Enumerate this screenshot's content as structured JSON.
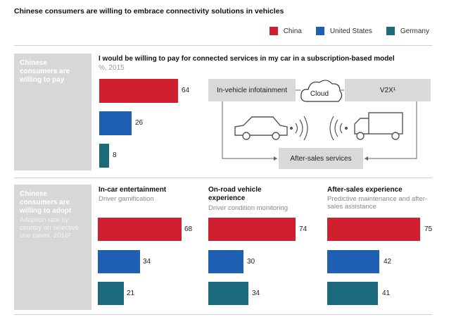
{
  "title": "Chinese consumers are willing to embrace connectivity solutions in vehicles",
  "legend": [
    {
      "label": "China",
      "color": "#d0202f"
    },
    {
      "label": "United States",
      "color": "#1f5fb4"
    },
    {
      "label": "Germany",
      "color": "#1c6b7d"
    }
  ],
  "section1": {
    "heading": "Chinese consumers are willing to pay",
    "question": "I would be willing to pay for connected services in my car in a subscription-based model",
    "unit": "%, 2015"
  },
  "section2": {
    "heading": "Chinese consumers are willing to adopt",
    "sub": "Adoption rate by country on selective use cases, 2016²"
  },
  "diagram": {
    "infotainment": "In-vehicle infotainment",
    "cloud": "Cloud",
    "v2x": "V2X¹",
    "after_sales": "After-sales services",
    "car_icon": "car-icon",
    "truck_icon": "truck-icon",
    "signal_icon": "wireless-signal-icon"
  },
  "chart_data": [
    {
      "type": "bar",
      "orientation": "horizontal",
      "title": "I would be willing to pay for connected services in my car in a subscription-based model",
      "unit": "%, 2015",
      "series": [
        {
          "name": "China",
          "values": [
            64
          ]
        },
        {
          "name": "United States",
          "values": [
            26
          ]
        },
        {
          "name": "Germany",
          "values": [
            8
          ]
        }
      ],
      "xlim": [
        0,
        100
      ]
    },
    {
      "type": "bar",
      "orientation": "horizontal",
      "title": "In-car entertainment",
      "subtitle": "Driver gamification",
      "series": [
        {
          "name": "China",
          "values": [
            68
          ]
        },
        {
          "name": "United States",
          "values": [
            34
          ]
        },
        {
          "name": "Germany",
          "values": [
            21
          ]
        }
      ],
      "xlim": [
        0,
        100
      ]
    },
    {
      "type": "bar",
      "orientation": "horizontal",
      "title": "On-road vehicle experience",
      "subtitle": "Driver condition monitoring",
      "series": [
        {
          "name": "China",
          "values": [
            74
          ]
        },
        {
          "name": "United States",
          "values": [
            30
          ]
        },
        {
          "name": "Germany",
          "values": [
            34
          ]
        }
      ],
      "xlim": [
        0,
        100
      ]
    },
    {
      "type": "bar",
      "orientation": "horizontal",
      "title": "After-sales experience",
      "subtitle": "Predictive maintenance and after-sales assistance",
      "series": [
        {
          "name": "China",
          "values": [
            75
          ]
        },
        {
          "name": "United States",
          "values": [
            42
          ]
        },
        {
          "name": "Germany",
          "values": [
            41
          ]
        }
      ],
      "xlim": [
        0,
        100
      ]
    }
  ]
}
